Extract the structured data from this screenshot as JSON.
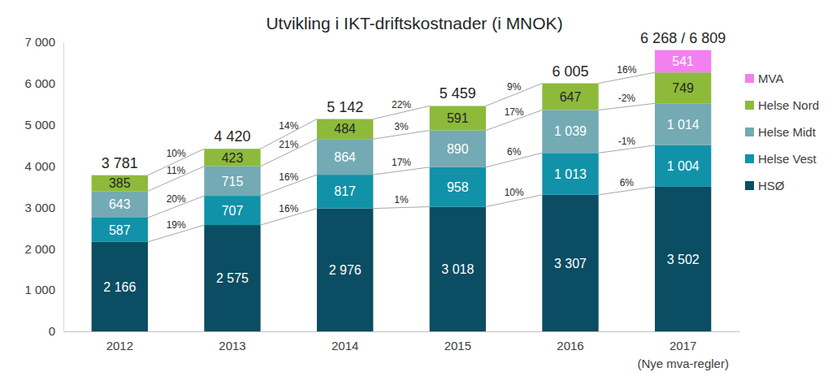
{
  "chart_data": {
    "type": "bar",
    "title": "Utvikling i IKT-driftskostnader (i MNOK)",
    "categories": [
      "2012",
      "2013",
      "2014",
      "2015",
      "2016",
      "2017\n(Nye mva-regler)"
    ],
    "stacked": true,
    "data_labels": true,
    "legend": "right",
    "grid": false,
    "ylim": [
      0,
      7000
    ],
    "yticks": [
      0,
      {
        "value": 1000,
        "label": "1 000"
      },
      {
        "value": 2000,
        "label": "2 000"
      },
      {
        "value": 3000,
        "label": "3 000"
      },
      {
        "value": 4000,
        "label": "4 000"
      },
      {
        "value": 5000,
        "label": "5 000"
      },
      {
        "value": 6000,
        "label": "6 000"
      },
      {
        "value": 7000,
        "label": "7 000"
      }
    ],
    "series": [
      {
        "name": "HSØ",
        "color": "#0b4d62",
        "values": [
          2166,
          2575,
          2976,
          3018,
          3307,
          3502
        ],
        "value_labels": [
          "2 166",
          "2 575",
          "2 976",
          "3 018",
          "3 307",
          "3 502"
        ],
        "growth_labels": [
          "19%",
          "16%",
          "1%",
          "10%",
          "6%"
        ]
      },
      {
        "name": "Helse Vest",
        "color": "#1192a8",
        "values": [
          587,
          707,
          817,
          958,
          1013,
          1004
        ],
        "value_labels": [
          "587",
          "707",
          "817",
          "958",
          "1 013",
          "1 004"
        ],
        "growth_labels": [
          "20%",
          "16%",
          "17%",
          "6%",
          "-1%"
        ]
      },
      {
        "name": "Helse Midt",
        "color": "#73aab4",
        "values": [
          643,
          715,
          864,
          890,
          1039,
          1014
        ],
        "value_labels": [
          "643",
          "715",
          "864",
          "890",
          "1 039",
          "1 014"
        ],
        "growth_labels": [
          "11%",
          "21%",
          "3%",
          "17%",
          "-2%"
        ]
      },
      {
        "name": "Helse Nord",
        "color": "#8dba3a",
        "values": [
          385,
          423,
          484,
          591,
          647,
          749
        ],
        "value_labels": [
          "385",
          "423",
          "484",
          "591",
          "647",
          "749"
        ],
        "growth_labels": [
          "10%",
          "14%",
          "22%",
          "9%",
          "16%"
        ]
      },
      {
        "name": "MVA",
        "color": "#f47ff0",
        "values": [
          null,
          null,
          null,
          null,
          null,
          541
        ],
        "value_labels": [
          null,
          null,
          null,
          null,
          null,
          "541"
        ]
      }
    ],
    "total_labels": [
      "3 781",
      "4 420",
      "5 142",
      "5 459",
      "6 005",
      "6 268 / 6 809"
    ]
  }
}
